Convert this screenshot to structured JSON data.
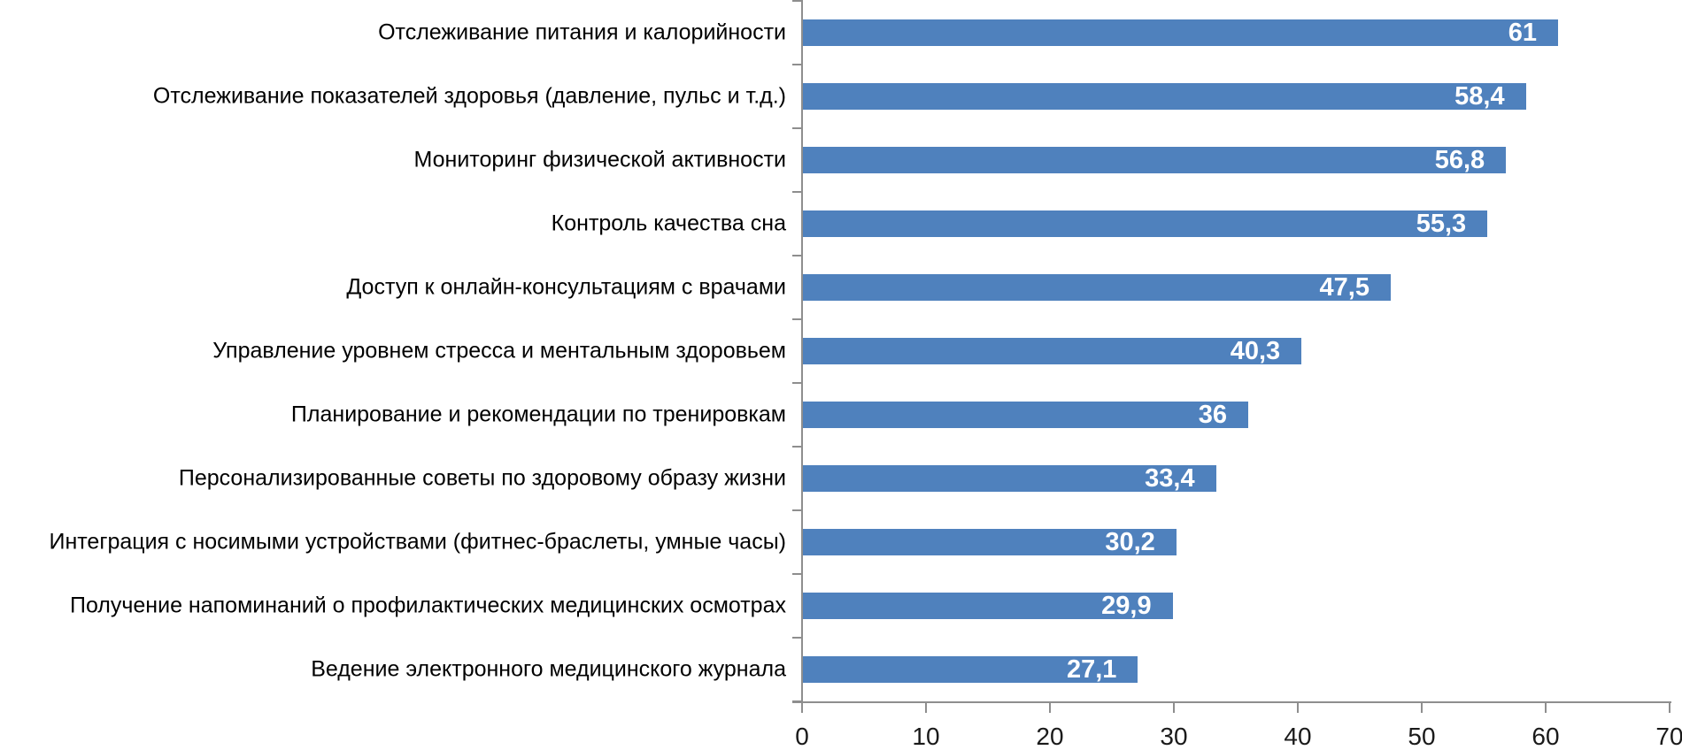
{
  "chart_data": {
    "type": "bar",
    "orientation": "horizontal",
    "title": "",
    "xlabel": "",
    "ylabel": "",
    "xlim": [
      0,
      70
    ],
    "grid": false,
    "legend": false,
    "bar_color": "#4f81bd",
    "axis_color": "#8e8e8e",
    "value_label_color": "#ffffff",
    "category_label_color": "#000000",
    "categories": [
      "Отслеживание питания и калорийности",
      "Отслеживание показателей здоровья (давление, пульс и т.д.)",
      "Мониторинг физической активности",
      "Контроль качества сна",
      "Доступ к онлайн-консультациям с врачами",
      "Управление уровнем стресса и ментальным здоровьем",
      "Планирование и рекомендации по тренировкам",
      "Персонализированные советы по здоровому образу жизни",
      "Интеграция с носимыми устройствами (фитнес-браслеты, умные часы)",
      "Получение напоминаний о профилактических медицинских осмотрах",
      "Ведение электронного медицинского журнала"
    ],
    "values": [
      61,
      58.4,
      56.8,
      55.3,
      47.5,
      40.3,
      36,
      33.4,
      30.2,
      29.9,
      27.1
    ],
    "value_labels": [
      "61",
      "58,4",
      "56,8",
      "55,3",
      "47,5",
      "40,3",
      "36",
      "33,4",
      "30,2",
      "29,9",
      "27,1"
    ],
    "x_ticks": [
      0,
      10,
      20,
      30,
      40,
      50,
      60,
      70
    ],
    "x_tick_labels": [
      "0",
      "10",
      "20",
      "30",
      "40",
      "50",
      "60",
      "70"
    ]
  }
}
